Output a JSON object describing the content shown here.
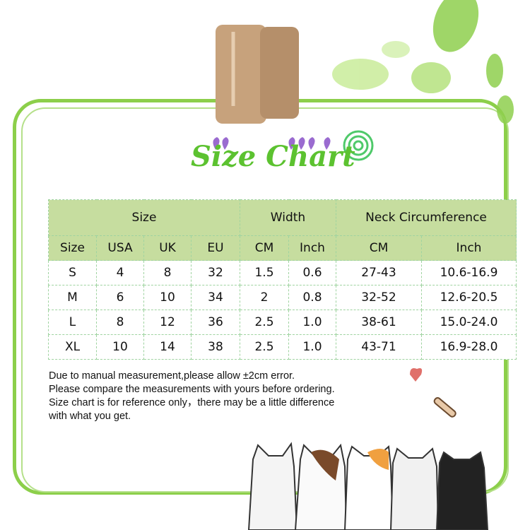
{
  "title": "Size Chart",
  "colors": {
    "frame": "#8ccf4a",
    "header_bg": "#c6dd9f",
    "title": "#5cc230"
  },
  "table": {
    "group_headers": [
      "Size",
      "Width",
      "Neck Circumference"
    ],
    "sub_headers": [
      "Size",
      "USA",
      "UK",
      "EU",
      "CM",
      "Inch",
      "CM",
      "Inch"
    ],
    "rows": [
      [
        "S",
        "4",
        "8",
        "32",
        "1.5",
        "0.6",
        "27-43",
        "10.6-16.9"
      ],
      [
        "M",
        "6",
        "10",
        "34",
        "2",
        "0.8",
        "32-52",
        "12.6-20.5"
      ],
      [
        "L",
        "8",
        "12",
        "36",
        "2.5",
        "1.0",
        "38-61",
        "15.0-24.0"
      ],
      [
        "XL",
        "10",
        "14",
        "38",
        "2.5",
        "1.0",
        "43-71",
        "16.9-28.0"
      ]
    ]
  },
  "notes": [
    "Due to manual measurement,please allow ±2cm error.",
    "Please compare the measurements with yours before ordering.",
    "Size chart is for reference only，there may be a little difference",
    "with what you get."
  ]
}
